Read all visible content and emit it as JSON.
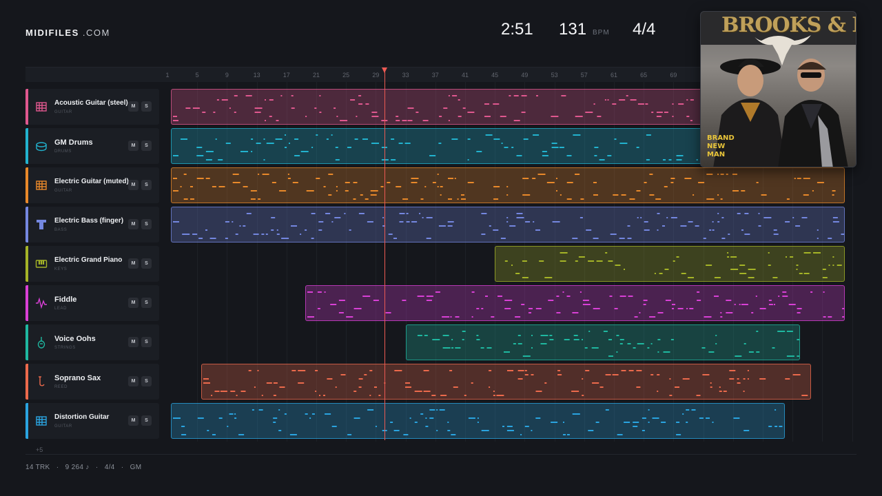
{
  "brand": {
    "name": "MIDIFILES",
    "suffix": ".COM"
  },
  "transport": {
    "time": "2:51",
    "bpm": "131",
    "bpm_unit": "BPM",
    "time_signature": "4/4"
  },
  "ruler": {
    "bars": [
      "1",
      "5",
      "9",
      "13",
      "17",
      "21",
      "25",
      "29",
      "33",
      "37",
      "41",
      "45",
      "49",
      "53",
      "57",
      "61",
      "65",
      "69"
    ]
  },
  "playhead": {
    "bar": 29
  },
  "album": {
    "artist": "BROOKS & DUNN",
    "title_lines": [
      "BRAND",
      "NEW",
      "MAN"
    ]
  },
  "tracks": [
    {
      "name": "Acoustic Guitar (steel)",
      "category": "GUITAR",
      "icon": "guitar-fretboard-icon",
      "color": "#e0588f",
      "mute": "M",
      "solo": "S",
      "clip_start_bar": 1.5,
      "clip_end_bar": 92
    },
    {
      "name": "GM Drums",
      "category": "DRUMS",
      "icon": "drum-icon",
      "color": "#22b3cf",
      "mute": "M",
      "solo": "S",
      "clip_start_bar": 1,
      "clip_end_bar": 92
    },
    {
      "name": "Electric Guitar (muted)",
      "category": "GUITAR",
      "icon": "guitar-fretboard-icon",
      "color": "#e9892a",
      "mute": "M",
      "solo": "S",
      "clip_start_bar": 1.5,
      "clip_end_bar": 92
    },
    {
      "name": "Electric Bass (finger)",
      "category": "BASS",
      "icon": "bass-icon",
      "color": "#7487e0",
      "mute": "M",
      "solo": "S",
      "clip_start_bar": 1.5,
      "clip_end_bar": 92
    },
    {
      "name": "Electric Grand Piano",
      "category": "KEYS",
      "icon": "piano-keys-icon",
      "color": "#a5b427",
      "mute": "M",
      "solo": "S",
      "clip_start_bar": 45,
      "clip_end_bar": 92
    },
    {
      "name": "Fiddle",
      "category": "LEAD",
      "icon": "waveform-icon",
      "color": "#d940d6",
      "mute": "M",
      "solo": "S",
      "clip_start_bar": 19.5,
      "clip_end_bar": 92
    },
    {
      "name": "Voice Oohs",
      "category": "STRINGS",
      "icon": "violin-icon",
      "color": "#1fb8a0",
      "mute": "M",
      "solo": "S",
      "clip_start_bar": 33,
      "clip_end_bar": 86
    },
    {
      "name": "Soprano Sax",
      "category": "REED",
      "icon": "saxophone-icon",
      "color": "#ec6a4c",
      "mute": "M",
      "solo": "S",
      "clip_start_bar": 5.5,
      "clip_end_bar": 87.5
    },
    {
      "name": "Distortion Guitar",
      "category": "GUITAR",
      "icon": "guitar-fretboard-icon",
      "color": "#2aa4e0",
      "mute": "M",
      "solo": "S",
      "clip_start_bar": 1.5,
      "clip_end_bar": 84
    }
  ],
  "more_tracks": "+5",
  "footer": {
    "tracks": "14 TRK",
    "notes": "9 264 ♪",
    "time_signature": "4/4",
    "format": "GM",
    "separator": "·"
  }
}
